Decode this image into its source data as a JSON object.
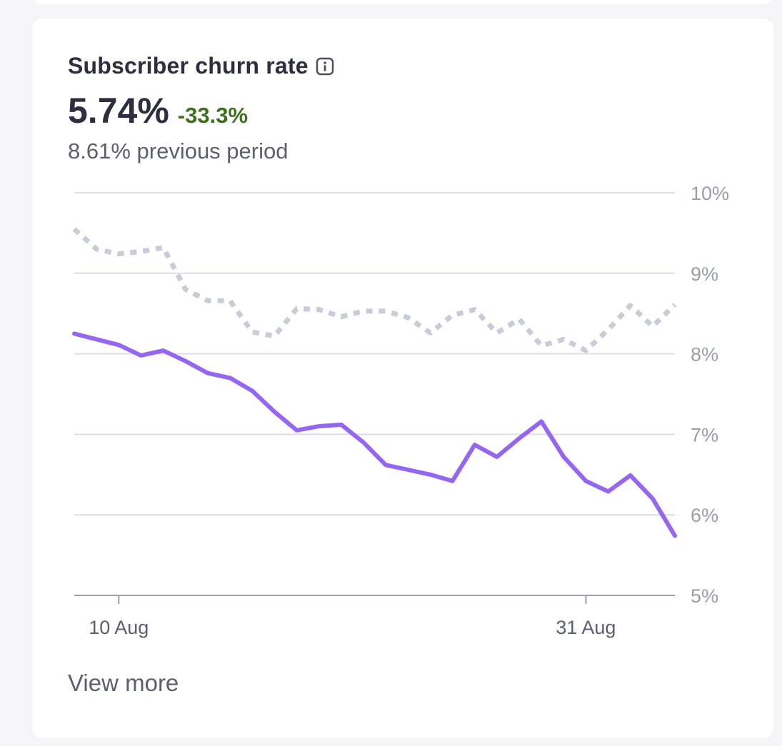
{
  "card": {
    "title": "Subscriber churn rate",
    "info_icon": "info-icon",
    "metric_value": "5.74%",
    "change": "-33.3%",
    "previous_period": "8.61% previous period",
    "view_more": "View more"
  },
  "colors": {
    "current": "#9467f2",
    "previous": "#c8ccd6",
    "grid": "#dcdde6",
    "axis": "#9aa0ad",
    "tick_label": "#9a9ea9",
    "change_positive": "#3f6f1e"
  },
  "chart_data": {
    "type": "line",
    "y_ticks": [
      "10%",
      "9%",
      "8%",
      "7%",
      "6%",
      "5%"
    ],
    "ylim": [
      5,
      10
    ],
    "x_ticks": [
      {
        "label": "10 Aug",
        "index": 2
      },
      {
        "label": "31 Aug",
        "index": 23
      }
    ],
    "grid": true,
    "series": [
      {
        "style": "solid",
        "values": [
          8.25,
          8.18,
          8.11,
          7.98,
          8.04,
          7.91,
          7.76,
          7.7,
          7.54,
          7.28,
          7.05,
          7.1,
          7.12,
          6.9,
          6.62,
          6.56,
          6.5,
          6.42,
          6.87,
          6.72,
          6.95,
          7.16,
          6.72,
          6.42,
          6.29,
          6.49,
          6.2,
          5.74
        ]
      },
      {
        "style": "dotted",
        "values": [
          9.55,
          9.3,
          9.24,
          9.27,
          9.32,
          8.8,
          8.66,
          8.66,
          8.27,
          8.22,
          8.56,
          8.55,
          8.46,
          8.53,
          8.53,
          8.45,
          8.26,
          8.48,
          8.55,
          8.26,
          8.43,
          8.1,
          8.18,
          8.04,
          8.3,
          8.6,
          8.34,
          8.61
        ]
      }
    ]
  }
}
